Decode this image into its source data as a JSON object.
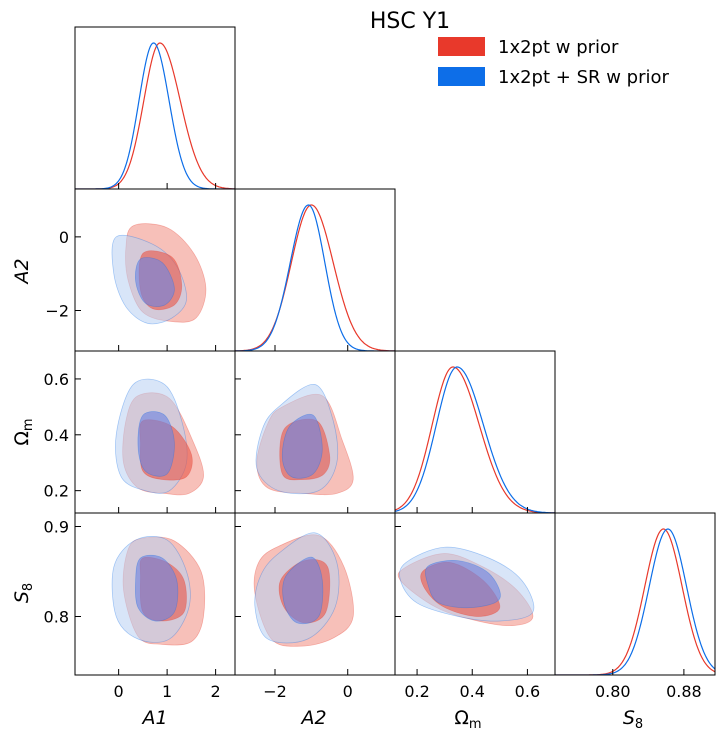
{
  "figure": {
    "title": "HSC Y1",
    "legend": [
      {
        "label": "1x2pt w prior",
        "color": "#e8392b"
      },
      {
        "label": "1x2pt + SR w prior",
        "color": "#0d6ee8"
      }
    ]
  },
  "axis_label_text": {
    "A1": "A1",
    "A2": "A2",
    "Omega_main": "Ω",
    "Omega_sub": "m",
    "S8_main": "S",
    "S8_sub": "8"
  },
  "chart_data": {
    "type": "triangle-corner-plot",
    "title": "HSC Y1",
    "parameters": [
      {
        "name": "A1",
        "range": [
          -0.9,
          2.4
        ],
        "ticks": [
          0,
          1,
          2
        ],
        "tick_labels": [
          "0",
          "1",
          "2"
        ]
      },
      {
        "name": "A2",
        "range": [
          -3.1,
          1.3
        ],
        "ticks": [
          -2,
          0
        ],
        "tick_labels": [
          "−2",
          "0"
        ]
      },
      {
        "name": "Omega_m",
        "range": [
          0.12,
          0.7
        ],
        "ticks": [
          0.2,
          0.4,
          0.6
        ],
        "tick_labels": [
          "0.2",
          "0.4",
          "0.6"
        ]
      },
      {
        "name": "S8",
        "range": [
          0.735,
          0.915
        ],
        "ticks": [
          0.8,
          0.9
        ],
        "tick_labels": [
          "0.8",
          "0.9"
        ],
        "x_ticks": [
          0.8,
          0.88
        ],
        "x_tick_labels": [
          "0.80",
          "0.88"
        ]
      }
    ],
    "series": [
      {
        "name": "1x2pt w prior",
        "color": "#e8392b",
        "inner_fill": "#e8584a",
        "outer_fill": "#f08c80",
        "marginals": [
          {
            "param": "A1",
            "mean": 0.85,
            "sigma_left": 0.33,
            "sigma_right": 0.42
          },
          {
            "param": "A2",
            "mean": -1.0,
            "sigma_left": 0.55,
            "sigma_right": 0.6
          },
          {
            "param": "Omega_m",
            "mean": 0.33,
            "sigma_left": 0.075,
            "sigma_right": 0.095
          },
          {
            "param": "S8",
            "mean": 0.857,
            "sigma_left": 0.021,
            "sigma_right": 0.021
          }
        ],
        "contours_2d": {
          "A1-A2": {
            "outer": [
              [
                0.3,
                0.3
              ],
              [
                1.0,
                0.25
              ],
              [
                1.55,
                -0.45
              ],
              [
                1.8,
                -1.4
              ],
              [
                1.6,
                -2.2
              ],
              [
                1.1,
                -2.3
              ],
              [
                0.5,
                -2.05
              ],
              [
                0.2,
                -1.2
              ],
              [
                0.15,
                -0.3
              ]
            ],
            "inner": [
              [
                0.5,
                -0.45
              ],
              [
                1.1,
                -0.55
              ],
              [
                1.3,
                -1.3
              ],
              [
                1.15,
                -1.85
              ],
              [
                0.7,
                -1.95
              ],
              [
                0.45,
                -1.45
              ]
            ]
          },
          "A1-Omega_m": {
            "outer": [
              [
                0.4,
                0.54
              ],
              [
                1.05,
                0.53
              ],
              [
                1.55,
                0.37
              ],
              [
                1.75,
                0.25
              ],
              [
                1.45,
                0.19
              ],
              [
                0.95,
                0.19
              ],
              [
                0.4,
                0.21
              ],
              [
                0.1,
                0.3
              ],
              [
                0.15,
                0.45
              ]
            ],
            "inner": [
              [
                0.5,
                0.45
              ],
              [
                1.1,
                0.43
              ],
              [
                1.5,
                0.33
              ],
              [
                1.4,
                0.25
              ],
              [
                0.9,
                0.24
              ],
              [
                0.5,
                0.27
              ],
              [
                0.45,
                0.37
              ]
            ]
          },
          "A1-S8": {
            "outer": [
              [
                0.5,
                0.887
              ],
              [
                1.15,
                0.884
              ],
              [
                1.7,
                0.85
              ],
              [
                1.75,
                0.8
              ],
              [
                1.5,
                0.772
              ],
              [
                0.9,
                0.769
              ],
              [
                0.4,
                0.778
              ],
              [
                0.1,
                0.83
              ],
              [
                0.2,
                0.875
              ]
            ],
            "inner": [
              [
                0.5,
                0.865
              ],
              [
                1.0,
                0.86
              ],
              [
                1.35,
                0.84
              ],
              [
                1.35,
                0.805
              ],
              [
                0.9,
                0.795
              ],
              [
                0.5,
                0.805
              ],
              [
                0.45,
                0.845
              ]
            ]
          },
          "A2-Omega_m": {
            "outer": [
              [
                -1.8,
                0.5
              ],
              [
                -0.7,
                0.54
              ],
              [
                -0.15,
                0.38
              ],
              [
                0.15,
                0.24
              ],
              [
                -0.3,
                0.19
              ],
              [
                -1.2,
                0.19
              ],
              [
                -2.2,
                0.21
              ],
              [
                -2.5,
                0.3
              ],
              [
                -2.2,
                0.44
              ]
            ],
            "inner": [
              [
                -1.75,
                0.42
              ],
              [
                -0.85,
                0.45
              ],
              [
                -0.5,
                0.33
              ],
              [
                -0.65,
                0.26
              ],
              [
                -1.2,
                0.24
              ],
              [
                -1.8,
                0.26
              ]
            ]
          },
          "A2-S8": {
            "outer": [
              [
                -1.9,
                0.878
              ],
              [
                -0.8,
                0.89
              ],
              [
                -0.1,
                0.855
              ],
              [
                0.15,
                0.8
              ],
              [
                -0.4,
                0.776
              ],
              [
                -1.3,
                0.767
              ],
              [
                -2.1,
                0.775
              ],
              [
                -2.55,
                0.825
              ],
              [
                -2.45,
                0.86
              ]
            ],
            "inner": [
              [
                -1.85,
                0.84
              ],
              [
                -1.2,
                0.862
              ],
              [
                -0.55,
                0.855
              ],
              [
                -0.6,
                0.805
              ],
              [
                -1.2,
                0.793
              ],
              [
                -1.75,
                0.81
              ]
            ]
          },
          "Omega_m-S8": {
            "outer": [
              [
                0.16,
                0.855
              ],
              [
                0.3,
                0.87
              ],
              [
                0.44,
                0.855
              ],
              [
                0.56,
                0.83
              ],
              [
                0.62,
                0.8
              ],
              [
                0.55,
                0.79
              ],
              [
                0.42,
                0.795
              ],
              [
                0.27,
                0.81
              ],
              [
                0.14,
                0.84
              ]
            ],
            "inner": [
              [
                0.22,
                0.85
              ],
              [
                0.32,
                0.86
              ],
              [
                0.44,
                0.84
              ],
              [
                0.5,
                0.81
              ],
              [
                0.42,
                0.8
              ],
              [
                0.3,
                0.81
              ],
              [
                0.23,
                0.83
              ]
            ]
          }
        }
      },
      {
        "name": "1x2pt + SR w prior",
        "color": "#0d6ee8",
        "inner_fill": "#6d84e0",
        "outer_fill": "#b8d0f2",
        "marginals": [
          {
            "param": "A1",
            "mean": 0.72,
            "sigma_left": 0.3,
            "sigma_right": 0.32
          },
          {
            "param": "A2",
            "mean": -1.08,
            "sigma_left": 0.5,
            "sigma_right": 0.45
          },
          {
            "param": "Omega_m",
            "mean": 0.345,
            "sigma_left": 0.075,
            "sigma_right": 0.095
          },
          {
            "param": "S8",
            "mean": 0.862,
            "sigma_left": 0.021,
            "sigma_right": 0.021
          }
        ],
        "contours_2d": {
          "A1-A2": {
            "outer": [
              [
                -0.05,
                0.0
              ],
              [
                0.7,
                -0.2
              ],
              [
                1.2,
                -0.8
              ],
              [
                1.4,
                -1.7
              ],
              [
                1.1,
                -2.2
              ],
              [
                0.6,
                -2.35
              ],
              [
                0.15,
                -1.9
              ],
              [
                -0.1,
                -1.0
              ]
            ],
            "inner": [
              [
                0.45,
                -0.6
              ],
              [
                0.9,
                -0.7
              ],
              [
                1.15,
                -1.4
              ],
              [
                0.95,
                -1.85
              ],
              [
                0.55,
                -1.8
              ],
              [
                0.35,
                -1.2
              ]
            ]
          },
          "A1-Omega_m": {
            "outer": [
              [
                0.3,
                0.58
              ],
              [
                0.95,
                0.58
              ],
              [
                1.3,
                0.45
              ],
              [
                1.4,
                0.3
              ],
              [
                1.05,
                0.2
              ],
              [
                0.55,
                0.2
              ],
              [
                0.05,
                0.25
              ],
              [
                -0.05,
                0.4
              ]
            ],
            "inner": [
              [
                0.5,
                0.47
              ],
              [
                0.95,
                0.47
              ],
              [
                1.15,
                0.37
              ],
              [
                1.0,
                0.26
              ],
              [
                0.55,
                0.27
              ],
              [
                0.4,
                0.36
              ]
            ]
          },
          "A1-S8": {
            "outer": [
              [
                0.35,
                0.885
              ],
              [
                1.0,
                0.885
              ],
              [
                1.4,
                0.85
              ],
              [
                1.45,
                0.81
              ],
              [
                1.05,
                0.775
              ],
              [
                0.4,
                0.775
              ],
              [
                -0.05,
                0.8
              ],
              [
                -0.1,
                0.855
              ]
            ],
            "inner": [
              [
                0.45,
                0.865
              ],
              [
                0.9,
                0.865
              ],
              [
                1.2,
                0.84
              ],
              [
                1.15,
                0.805
              ],
              [
                0.75,
                0.795
              ],
              [
                0.4,
                0.81
              ],
              [
                0.35,
                0.84
              ]
            ]
          },
          "A2-Omega_m": {
            "outer": [
              [
                -1.9,
                0.5
              ],
              [
                -0.9,
                0.58
              ],
              [
                -0.4,
                0.45
              ],
              [
                -0.3,
                0.3
              ],
              [
                -0.8,
                0.2
              ],
              [
                -1.9,
                0.2
              ],
              [
                -2.5,
                0.28
              ],
              [
                -2.35,
                0.42
              ]
            ],
            "inner": [
              [
                -1.6,
                0.43
              ],
              [
                -0.95,
                0.47
              ],
              [
                -0.7,
                0.35
              ],
              [
                -0.95,
                0.26
              ],
              [
                -1.55,
                0.25
              ],
              [
                -1.8,
                0.32
              ]
            ]
          },
          "A2-S8": {
            "outer": [
              [
                -1.9,
                0.87
              ],
              [
                -0.9,
                0.893
              ],
              [
                -0.3,
                0.86
              ],
              [
                -0.35,
                0.81
              ],
              [
                -1.1,
                0.775
              ],
              [
                -2.2,
                0.775
              ],
              [
                -2.55,
                0.81
              ],
              [
                -2.4,
                0.845
              ]
            ],
            "inner": [
              [
                -1.7,
                0.845
              ],
              [
                -1.0,
                0.866
              ],
              [
                -0.7,
                0.84
              ],
              [
                -0.8,
                0.8
              ],
              [
                -1.4,
                0.793
              ],
              [
                -1.75,
                0.815
              ]
            ]
          },
          "Omega_m-S8": {
            "outer": [
              [
                0.16,
                0.86
              ],
              [
                0.3,
                0.877
              ],
              [
                0.46,
                0.865
              ],
              [
                0.58,
                0.84
              ],
              [
                0.62,
                0.805
              ],
              [
                0.5,
                0.795
              ],
              [
                0.35,
                0.8
              ],
              [
                0.2,
                0.815
              ],
              [
                0.14,
                0.84
              ]
            ],
            "inner": [
              [
                0.24,
                0.856
              ],
              [
                0.35,
                0.862
              ],
              [
                0.46,
                0.848
              ],
              [
                0.5,
                0.82
              ],
              [
                0.4,
                0.81
              ],
              [
                0.28,
                0.815
              ],
              [
                0.24,
                0.835
              ]
            ]
          }
        }
      }
    ]
  }
}
